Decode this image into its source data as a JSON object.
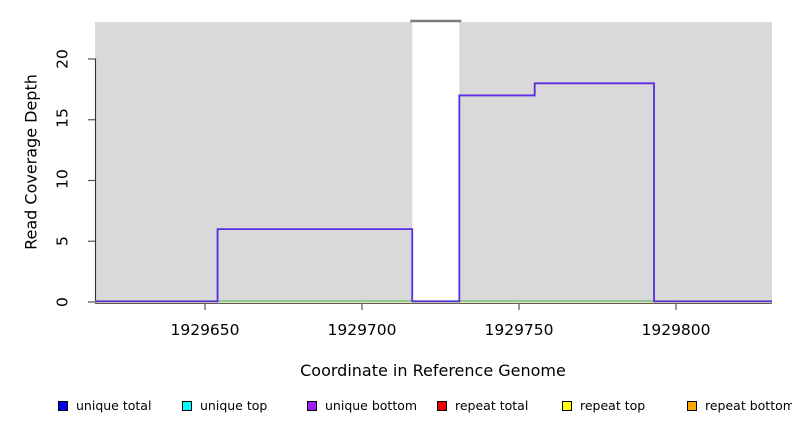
{
  "chart_data": {
    "type": "line",
    "style": "step-coverage-plot",
    "title": "",
    "xlabel": "Coordinate in Reference Genome",
    "ylabel": "Read Coverage Depth",
    "x_ticks": [
      "1929650",
      "1929700",
      "1929750",
      "1929800"
    ],
    "x_tick_values": [
      1929650,
      1929700,
      1929750,
      1929800
    ],
    "y_ticks": [
      "0",
      "5",
      "10",
      "15",
      "20"
    ],
    "y_tick_values": [
      0,
      5,
      10,
      15,
      20
    ],
    "x_range": [
      1929615,
      1929831
    ],
    "y_range": [
      0,
      23
    ],
    "grid": false,
    "legend_position": "bottom",
    "plot_background": "#d9d9d9",
    "series": [
      {
        "name": "unique bottom",
        "color": "#5a2be0",
        "render": "step",
        "points": [
          [
            1929615,
            0
          ],
          [
            1929654,
            6
          ],
          [
            1929716,
            0
          ],
          [
            1929731,
            17
          ],
          [
            1929755,
            18
          ],
          [
            1929793,
            0
          ],
          [
            1929831,
            0
          ]
        ]
      },
      {
        "name": "baseline-green-at-zero",
        "color": "#77c377",
        "render": "hline",
        "value": 0
      },
      {
        "name": "baseline-pale-yellow-at-zero",
        "color": "#e9e2ab",
        "render": "hline",
        "value": 0
      }
    ],
    "masked_region": {
      "start": 1929716,
      "end": 1929731,
      "fill": "#ffffff",
      "top_bar_color": "#7d7d7d",
      "top_bar_depth": 23
    }
  },
  "legend": {
    "items": [
      {
        "label": "unique total",
        "color": "#0000ee"
      },
      {
        "label": "unique top",
        "color": "#00ffff"
      },
      {
        "label": "unique bottom",
        "color": "#a020f0"
      },
      {
        "label": "repeat total",
        "color": "#ee0000"
      },
      {
        "label": "repeat top",
        "color": "#ffff00"
      },
      {
        "label": "repeat bottom",
        "color": "#ffa500"
      }
    ]
  }
}
